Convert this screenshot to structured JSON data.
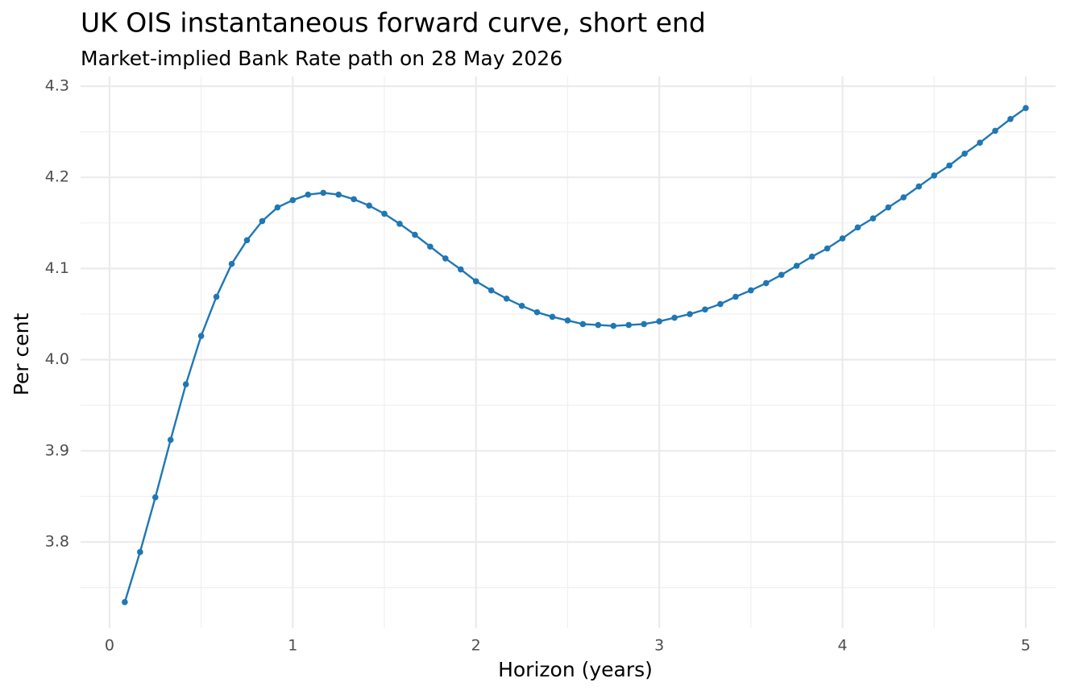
{
  "chart_data": {
    "type": "line",
    "title": "UK OIS instantaneous forward curve, short end",
    "subtitle": "Market-implied Bank Rate path on 28 May 2026",
    "x_label": "Horizon (years)",
    "y_label": "Per cent",
    "x": [
      0.0833,
      0.1667,
      0.25,
      0.3333,
      0.4167,
      0.5,
      0.5833,
      0.6667,
      0.75,
      0.8333,
      0.9167,
      1,
      1.0833,
      1.1667,
      1.25,
      1.3333,
      1.4167,
      1.5,
      1.5833,
      1.6667,
      1.75,
      1.8333,
      1.9167,
      2,
      2.0833,
      2.1667,
      2.25,
      2.3333,
      2.4167,
      2.5,
      2.5833,
      2.6667,
      2.75,
      2.8333,
      2.9167,
      3,
      3.0833,
      3.1667,
      3.25,
      3.3333,
      3.4167,
      3.5,
      3.5833,
      3.6667,
      3.75,
      3.8333,
      3.9167,
      4,
      4.0833,
      4.1667,
      4.25,
      4.3333,
      4.4167,
      4.5,
      4.5833,
      4.6667,
      4.75,
      4.8333,
      4.9167,
      5
    ],
    "series": [
      {
        "color": "#1f77b4",
        "values": [
          3.734,
          3.789,
          3.849,
          3.912,
          3.973,
          4.026,
          4.069,
          4.105,
          4.131,
          4.152,
          4.167,
          4.175,
          4.181,
          4.183,
          4.181,
          4.176,
          4.169,
          4.16,
          4.149,
          4.137,
          4.124,
          4.111,
          4.099,
          4.086,
          4.076,
          4.067,
          4.059,
          4.052,
          4.047,
          4.043,
          4.039,
          4.038,
          4.037,
          4.038,
          4.039,
          4.042,
          4.046,
          4.05,
          4.055,
          4.061,
          4.069,
          4.076,
          4.084,
          4.093,
          4.103,
          4.113,
          4.122,
          4.133,
          4.145,
          4.155,
          4.167,
          4.178,
          4.19,
          4.202,
          4.213,
          4.226,
          4.238,
          4.251,
          4.264,
          4.276
        ]
      }
    ],
    "xlim": [
      -0.158,
      5.163
    ],
    "ylim": [
      3.7055,
      4.3106
    ],
    "xticks": [
      0,
      1,
      2,
      3,
      4,
      5
    ],
    "yticks": [
      3.8,
      3.9,
      {
        "value": 4,
        "label": "4.0"
      },
      4.1,
      4.2,
      4.3
    ],
    "xminorticks": [
      0.5,
      1.5,
      2.5,
      3.5,
      4.5
    ],
    "yminorticks": [
      3.75,
      3.85,
      3.95,
      4.05,
      4.15,
      4.25
    ],
    "grid": true
  }
}
